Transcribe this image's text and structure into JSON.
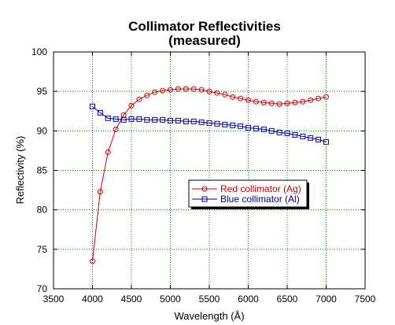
{
  "chart_data": {
    "type": "line",
    "title": "Collimator Reflectivities",
    "subtitle": "(measured)",
    "xlabel": "Wavelength (Å)",
    "ylabel": "Reflectivity (%)",
    "xlim": [
      3500,
      7500
    ],
    "ylim": [
      70,
      100
    ],
    "xticks": [
      "3500",
      "4000",
      "4500",
      "5000",
      "5500",
      "6000",
      "6500",
      "7000",
      "7500"
    ],
    "yticks": [
      "70",
      "75",
      "80",
      "85",
      "90",
      "95",
      "100"
    ],
    "grid": true,
    "legend_position": "inside-center-right",
    "x": [
      4000,
      4100,
      4200,
      4300,
      4400,
      4500,
      4600,
      4700,
      4800,
      4900,
      5000,
      5100,
      5200,
      5300,
      5400,
      5500,
      5600,
      5700,
      5800,
      5900,
      6000,
      6100,
      6200,
      6300,
      6400,
      6500,
      6600,
      6700,
      6800,
      6900,
      7000
    ],
    "series": [
      {
        "name": "Red collimator (Ag)",
        "color": "#cc0000",
        "marker": "circle",
        "values": [
          73.5,
          82.3,
          87.3,
          90.2,
          92.0,
          93.2,
          94.0,
          94.5,
          94.9,
          95.1,
          95.2,
          95.3,
          95.3,
          95.3,
          95.2,
          95.0,
          94.8,
          94.6,
          94.3,
          94.1,
          93.9,
          93.7,
          93.6,
          93.5,
          93.4,
          93.5,
          93.6,
          93.7,
          93.9,
          94.1,
          94.3
        ]
      },
      {
        "name": "Blue collimator (Al)",
        "color": "#000099",
        "marker": "square",
        "values": [
          93.1,
          92.3,
          91.6,
          91.5,
          91.4,
          91.5,
          91.5,
          91.4,
          91.4,
          91.4,
          91.3,
          91.3,
          91.2,
          91.2,
          91.1,
          91.0,
          90.9,
          90.8,
          90.7,
          90.6,
          90.4,
          90.3,
          90.2,
          90.0,
          89.8,
          89.7,
          89.5,
          89.3,
          89.1,
          88.9,
          88.6
        ]
      }
    ]
  }
}
